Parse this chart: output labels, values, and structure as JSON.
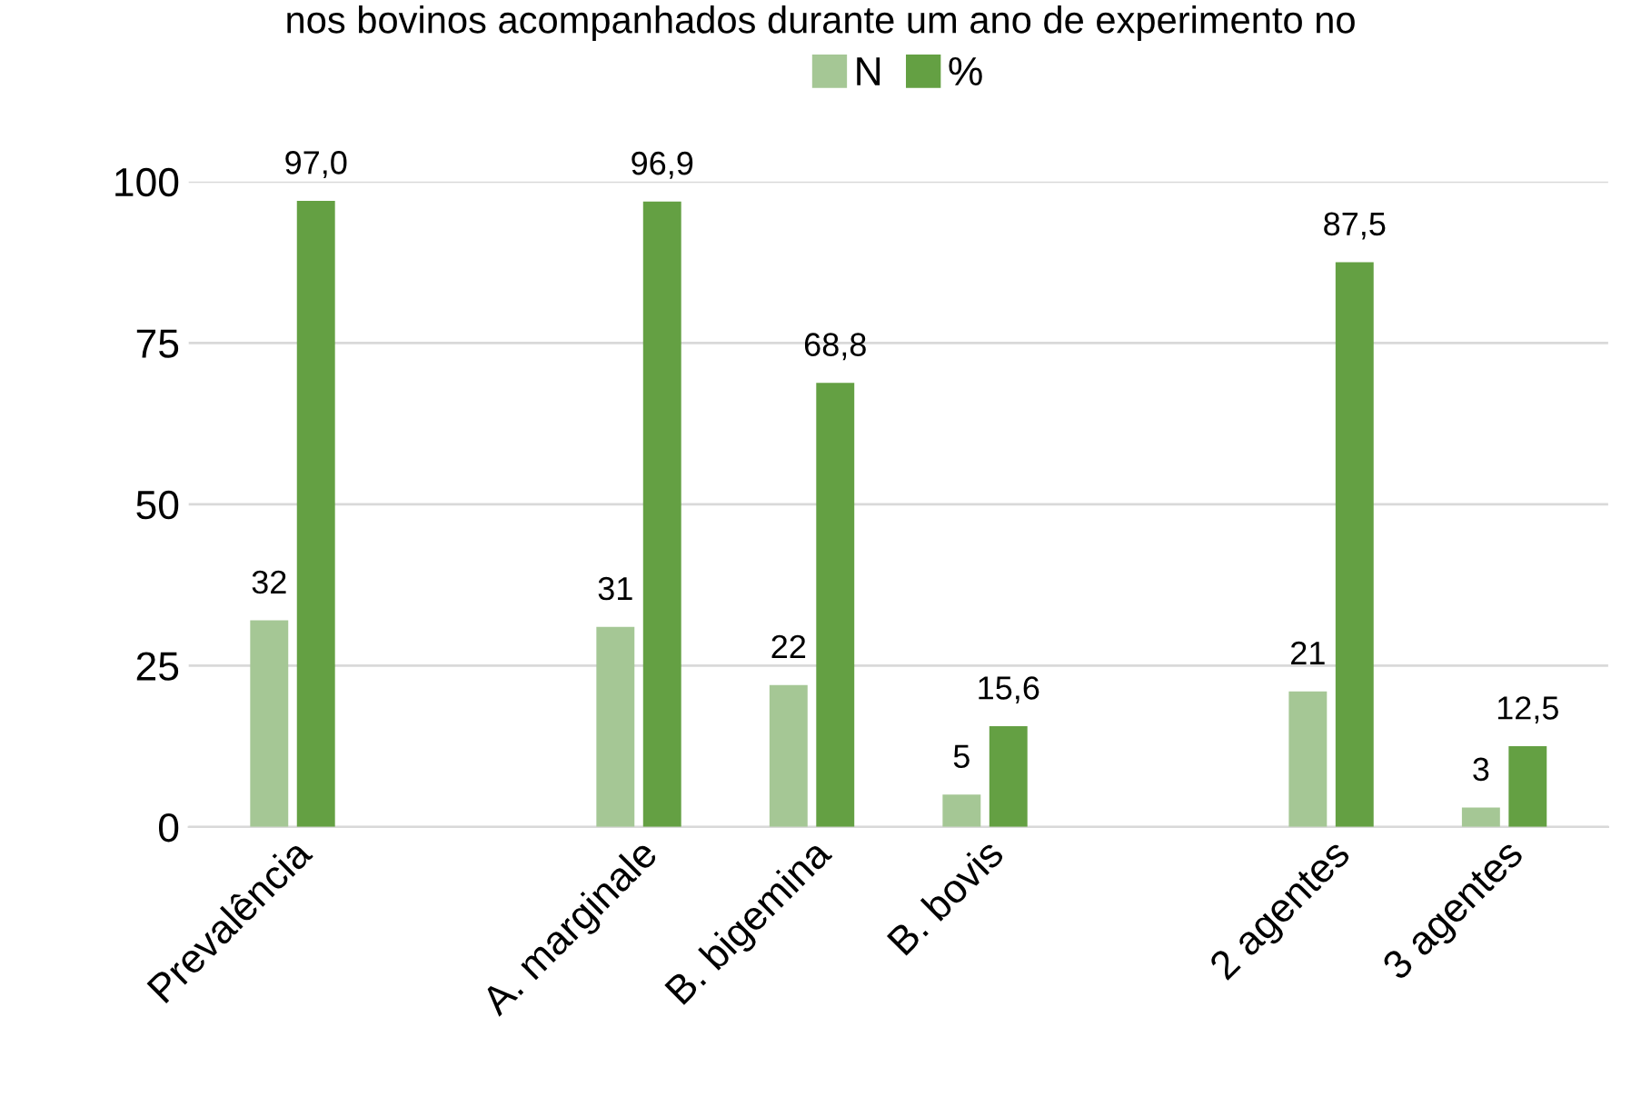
{
  "chart_data": {
    "type": "bar",
    "title": "nos bovinos acompanhados durante um ano de experimento no",
    "categories": [
      "Prevalência",
      null,
      "A. marginale",
      "B. bigemina",
      "B. bovis",
      null,
      "2 agentes",
      "3 agentes"
    ],
    "series": [
      {
        "name": "N",
        "color": "#a5c795",
        "values": [
          32,
          null,
          31,
          22,
          5,
          null,
          21,
          3
        ],
        "value_labels": [
          "32",
          null,
          "31",
          "22",
          "5",
          null,
          "21",
          "3"
        ]
      },
      {
        "name": "%",
        "color": "#64a043",
        "values": [
          97.0,
          null,
          96.9,
          68.8,
          15.6,
          null,
          87.5,
          12.5
        ],
        "value_labels": [
          "97,0",
          null,
          "96,9",
          "68,8",
          "15,6",
          null,
          "87,5",
          "12,5"
        ]
      }
    ],
    "ylim": [
      0,
      100
    ],
    "yticks": [
      0,
      25,
      50,
      75,
      100
    ],
    "grid": "y",
    "legend": "top"
  }
}
